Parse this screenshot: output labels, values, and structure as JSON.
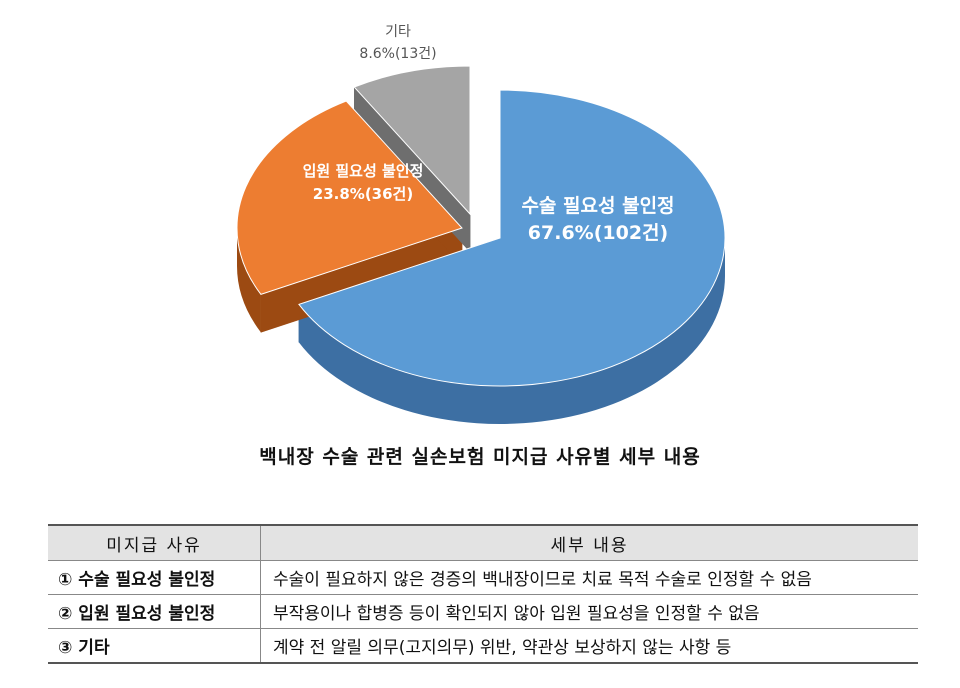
{
  "chart_data": {
    "type": "pie",
    "caption": "백내장 수술 관련 실손보험 미지급 사유별 세부 내용",
    "slices": [
      {
        "label": "수술 필요성 불인정",
        "value": 67.6,
        "count_label": "67.6%(102건)",
        "color": "#5b9bd5",
        "side_color": "#3d6fa3"
      },
      {
        "label": "입원 필요성 불인정",
        "value": 23.8,
        "count_label": "23.8%(36건)",
        "color": "#ed7d31",
        "side_color": "#9c4a12"
      },
      {
        "label": "기타",
        "value": 8.6,
        "count_label": "8.6%(13건)",
        "color": "#a5a5a5",
        "side_color": "#6e6e6e"
      }
    ]
  },
  "table": {
    "headers": [
      "미지급 사유",
      "세부 내용"
    ],
    "rows": [
      {
        "reason": "① 수술 필요성 불인정",
        "detail": "수술이 필요하지 않은 경증의 백내장이므로 치료 목적 수술로 인정할 수 없음"
      },
      {
        "reason": "② 입원 필요성 불인정",
        "detail": "부작용이나 합병증 등이 확인되지 않아 입원 필요성을 인정할 수 없음"
      },
      {
        "reason": "③ 기타",
        "detail": "계약 전 알릴 의무(고지의무) 위반, 약관상 보상하지 않는 사항 등"
      }
    ]
  }
}
